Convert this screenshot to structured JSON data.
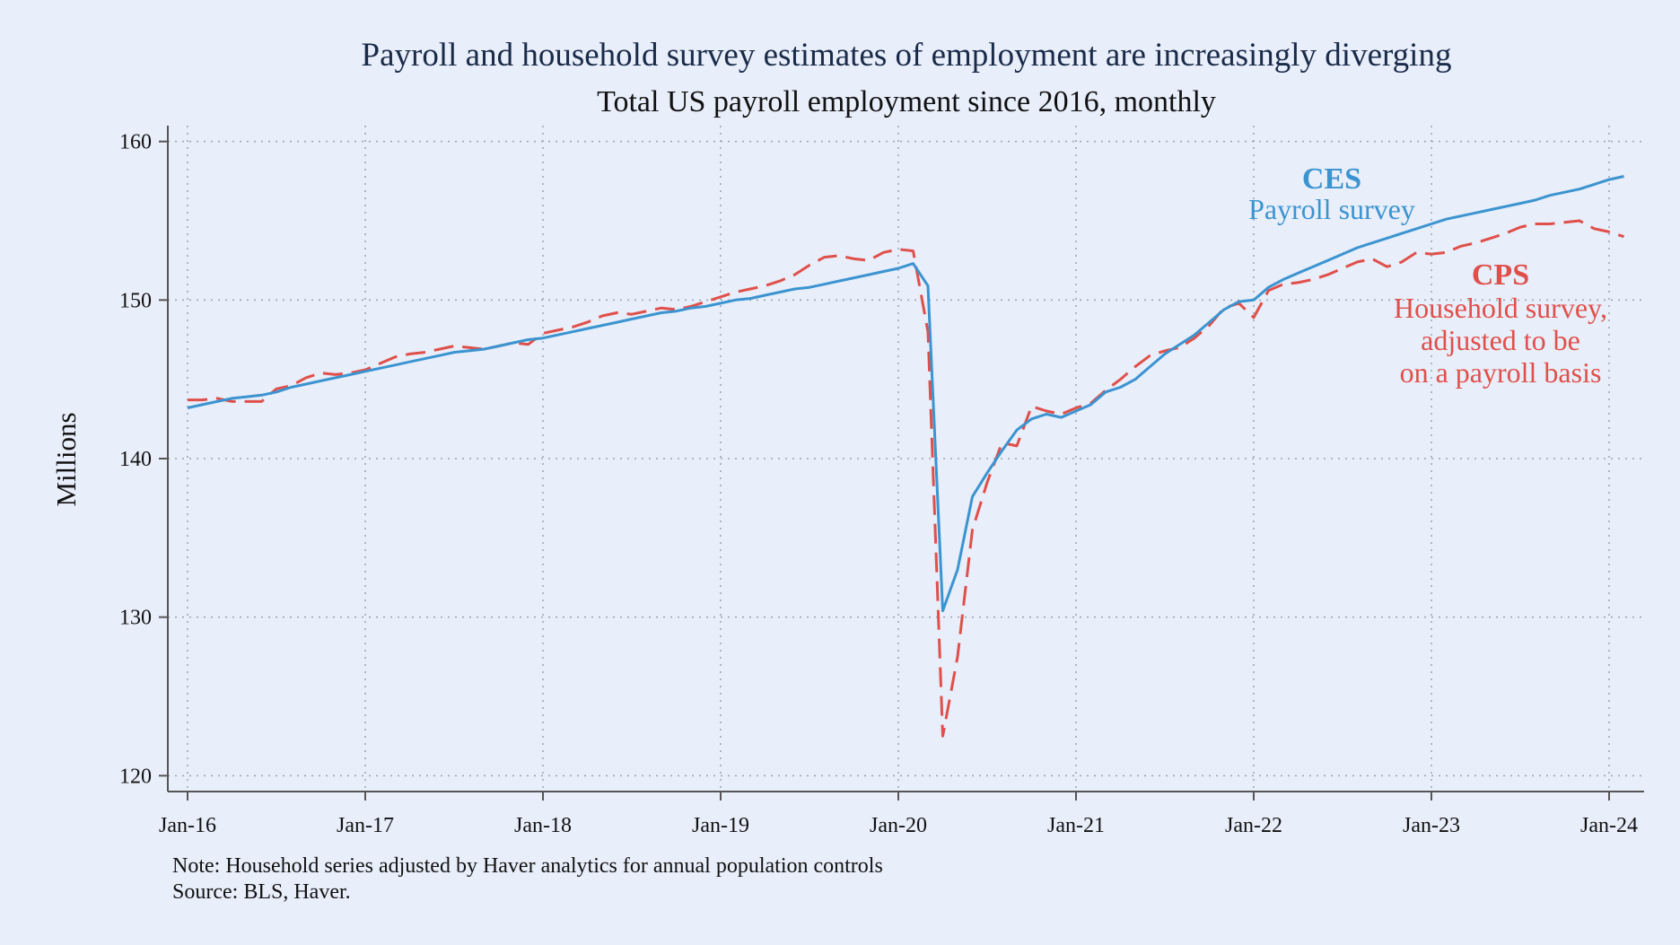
{
  "chart_data": {
    "type": "line",
    "title": "Payroll and household survey estimates of employment are increasingly diverging",
    "subtitle": "Total US payroll employment since 2016, monthly",
    "ylabel": "Millions",
    "xlabel": "",
    "ylim": [
      119,
      161
    ],
    "yticks": [
      120,
      130,
      140,
      150,
      160
    ],
    "x_start": "Jan-16",
    "x_end": "Feb-24",
    "xticks": [
      "Jan-16",
      "Jan-17",
      "Jan-18",
      "Jan-19",
      "Jan-20",
      "Jan-21",
      "Jan-22",
      "Jan-23",
      "Jan-24"
    ],
    "grid": "horizontal dotted",
    "series": [
      {
        "name": "CES",
        "color": "#3b94d0",
        "style": "solid",
        "values": [
          143.2,
          143.4,
          143.6,
          143.8,
          143.9,
          144.0,
          144.2,
          144.5,
          144.7,
          144.9,
          145.1,
          145.3,
          145.5,
          145.7,
          145.9,
          146.1,
          146.3,
          146.5,
          146.7,
          146.8,
          146.9,
          147.1,
          147.3,
          147.5,
          147.6,
          147.8,
          148.0,
          148.2,
          148.4,
          148.6,
          148.8,
          149.0,
          149.2,
          149.3,
          149.5,
          149.6,
          149.8,
          150.0,
          150.1,
          150.3,
          150.5,
          150.7,
          150.8,
          151.0,
          151.2,
          151.4,
          151.6,
          151.8,
          152.0,
          152.3,
          150.9,
          130.4,
          133.0,
          137.6,
          139.1,
          140.5,
          141.8,
          142.5,
          142.8,
          142.6,
          143.0,
          143.4,
          144.2,
          144.5,
          145.0,
          145.8,
          146.6,
          147.2,
          147.8,
          148.6,
          149.4,
          149.9,
          150.0,
          150.8,
          151.3,
          151.7,
          152.1,
          152.5,
          152.9,
          153.3,
          153.6,
          153.9,
          154.2,
          154.5,
          154.8,
          155.1,
          155.3,
          155.5,
          155.7,
          155.9,
          156.1,
          156.3,
          156.6,
          156.8,
          157.0,
          157.3,
          157.6,
          157.8
        ]
      },
      {
        "name": "CPS",
        "color": "#e0504a",
        "style": "dashed",
        "values": [
          143.7,
          143.7,
          143.8,
          143.6,
          143.6,
          143.6,
          144.4,
          144.6,
          145.1,
          145.4,
          145.3,
          145.4,
          145.6,
          146.0,
          146.4,
          146.6,
          146.7,
          146.9,
          147.1,
          147.0,
          146.9,
          147.1,
          147.3,
          147.2,
          147.9,
          148.1,
          148.3,
          148.6,
          149.0,
          149.2,
          149.1,
          149.3,
          149.5,
          149.4,
          149.6,
          149.9,
          150.2,
          150.5,
          150.7,
          150.9,
          151.2,
          151.6,
          152.2,
          152.7,
          152.8,
          152.6,
          152.5,
          153.0,
          153.2,
          153.1,
          148.0,
          122.5,
          127.5,
          135.5,
          138.5,
          141.0,
          140.8,
          143.3,
          143.0,
          142.8,
          143.2,
          143.5,
          144.3,
          145.0,
          145.8,
          146.5,
          146.8,
          147.0,
          147.6,
          148.4,
          149.5,
          149.8,
          148.9,
          150.6,
          151.0,
          151.1,
          151.3,
          151.6,
          152.0,
          152.4,
          152.6,
          152.1,
          152.4,
          153.0,
          152.9,
          153.0,
          153.4,
          153.6,
          153.9,
          154.2,
          154.6,
          154.8,
          154.8,
          154.9,
          155.0,
          154.5,
          154.3,
          154.0
        ]
      }
    ],
    "annotations": {
      "ces_name": "CES",
      "ces_desc": "Payroll survey",
      "cps_name": "CPS",
      "cps_desc_lines": [
        "Household survey,",
        "adjusted to be",
        "on a payroll basis"
      ]
    },
    "note_lines": [
      "Note: Household series adjusted by Haver analytics for annual population controls",
      "Source: BLS, Haver."
    ]
  }
}
